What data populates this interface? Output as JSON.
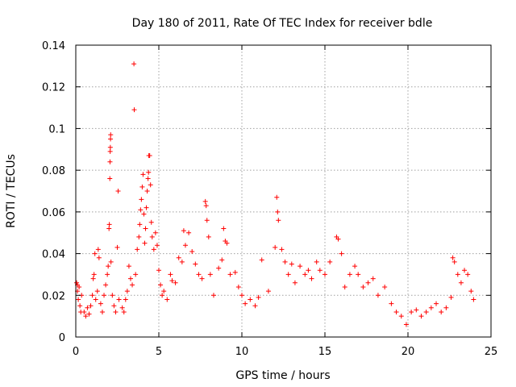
{
  "chart_data": {
    "type": "scatter",
    "title": "Day 180 of 2011, Rate Of TEC Index for receiver bdle",
    "xlabel": "GPS time / hours",
    "ylabel": "ROTI / TECUs",
    "xlim": [
      0,
      25
    ],
    "ylim": [
      0,
      0.14
    ],
    "xticks": [
      0,
      5,
      10,
      15,
      20,
      25
    ],
    "xtick_labels": [
      "0",
      "5",
      "10",
      "15",
      "20",
      "25"
    ],
    "yticks": [
      0,
      0.02,
      0.04,
      0.06,
      0.08,
      0.1,
      0.12,
      0.14
    ],
    "ytick_labels": [
      "0",
      "0.02",
      "0.04",
      "0.06",
      "0.08",
      "0.1",
      "0.12",
      "0.14"
    ],
    "grid": true,
    "marker": "+",
    "color": "#ff0000",
    "series": [
      {
        "points": [
          [
            0.05,
            0.026
          ],
          [
            0.1,
            0.022
          ],
          [
            0.15,
            0.018
          ],
          [
            0.2,
            0.024
          ],
          [
            0.25,
            0.015
          ],
          [
            0.3,
            0.012
          ],
          [
            0.35,
            0.02
          ],
          [
            0.1,
            0.025
          ],
          [
            0.5,
            0.012
          ],
          [
            0.6,
            0.01
          ],
          [
            0.7,
            0.014
          ],
          [
            0.8,
            0.011
          ],
          [
            0.9,
            0.015
          ],
          [
            1.0,
            0.02
          ],
          [
            1.05,
            0.028
          ],
          [
            1.1,
            0.03
          ],
          [
            1.15,
            0.04
          ],
          [
            1.2,
            0.018
          ],
          [
            1.3,
            0.022
          ],
          [
            1.35,
            0.042
          ],
          [
            1.4,
            0.038
          ],
          [
            1.5,
            0.016
          ],
          [
            1.6,
            0.012
          ],
          [
            1.7,
            0.02
          ],
          [
            1.8,
            0.025
          ],
          [
            1.9,
            0.03
          ],
          [
            1.95,
            0.034
          ],
          [
            2.0,
            0.052
          ],
          [
            2.02,
            0.054
          ],
          [
            2.05,
            0.076
          ],
          [
            2.06,
            0.084
          ],
          [
            2.07,
            0.089
          ],
          [
            2.08,
            0.091
          ],
          [
            2.09,
            0.095
          ],
          [
            2.1,
            0.097
          ],
          [
            2.12,
            0.036
          ],
          [
            2.2,
            0.02
          ],
          [
            2.3,
            0.015
          ],
          [
            2.4,
            0.012
          ],
          [
            2.5,
            0.043
          ],
          [
            2.55,
            0.07
          ],
          [
            2.6,
            0.018
          ],
          [
            2.8,
            0.014
          ],
          [
            2.9,
            0.012
          ],
          [
            3.0,
            0.018
          ],
          [
            3.1,
            0.022
          ],
          [
            3.2,
            0.034
          ],
          [
            3.3,
            0.028
          ],
          [
            3.4,
            0.025
          ],
          [
            3.5,
            0.131
          ],
          [
            3.52,
            0.109
          ],
          [
            3.6,
            0.03
          ],
          [
            3.7,
            0.042
          ],
          [
            3.8,
            0.048
          ],
          [
            3.85,
            0.054
          ],
          [
            3.9,
            0.061
          ],
          [
            3.95,
            0.066
          ],
          [
            4.0,
            0.072
          ],
          [
            4.05,
            0.078
          ],
          [
            4.1,
            0.059
          ],
          [
            4.15,
            0.045
          ],
          [
            4.2,
            0.052
          ],
          [
            4.25,
            0.062
          ],
          [
            4.3,
            0.07
          ],
          [
            4.35,
            0.076
          ],
          [
            4.38,
            0.079
          ],
          [
            4.4,
            0.087
          ],
          [
            4.45,
            0.087
          ],
          [
            4.5,
            0.073
          ],
          [
            4.55,
            0.055
          ],
          [
            4.6,
            0.048
          ],
          [
            4.7,
            0.042
          ],
          [
            4.8,
            0.05
          ],
          [
            4.9,
            0.044
          ],
          [
            5.0,
            0.032
          ],
          [
            5.1,
            0.025
          ],
          [
            5.2,
            0.02
          ],
          [
            5.3,
            0.022
          ],
          [
            5.5,
            0.018
          ],
          [
            5.7,
            0.03
          ],
          [
            5.8,
            0.027
          ],
          [
            6.0,
            0.026
          ],
          [
            6.2,
            0.038
          ],
          [
            6.4,
            0.036
          ],
          [
            6.5,
            0.051
          ],
          [
            6.6,
            0.044
          ],
          [
            6.8,
            0.05
          ],
          [
            7.0,
            0.041
          ],
          [
            7.2,
            0.035
          ],
          [
            7.4,
            0.03
          ],
          [
            7.6,
            0.028
          ],
          [
            7.8,
            0.065
          ],
          [
            7.85,
            0.063
          ],
          [
            7.9,
            0.056
          ],
          [
            8.0,
            0.048
          ],
          [
            8.1,
            0.03
          ],
          [
            8.3,
            0.02
          ],
          [
            8.6,
            0.033
          ],
          [
            8.8,
            0.037
          ],
          [
            8.9,
            0.052
          ],
          [
            9.0,
            0.046
          ],
          [
            9.1,
            0.045
          ],
          [
            9.3,
            0.03
          ],
          [
            9.6,
            0.031
          ],
          [
            9.8,
            0.024
          ],
          [
            10.0,
            0.02
          ],
          [
            10.2,
            0.016
          ],
          [
            10.5,
            0.018
          ],
          [
            10.8,
            0.015
          ],
          [
            11.0,
            0.019
          ],
          [
            11.2,
            0.037
          ],
          [
            11.6,
            0.022
          ],
          [
            12.0,
            0.043
          ],
          [
            12.1,
            0.067
          ],
          [
            12.15,
            0.06
          ],
          [
            12.2,
            0.056
          ],
          [
            12.4,
            0.042
          ],
          [
            12.6,
            0.036
          ],
          [
            12.8,
            0.03
          ],
          [
            13.0,
            0.035
          ],
          [
            13.2,
            0.026
          ],
          [
            13.5,
            0.034
          ],
          [
            13.8,
            0.03
          ],
          [
            14.0,
            0.032
          ],
          [
            14.2,
            0.028
          ],
          [
            14.5,
            0.036
          ],
          [
            14.7,
            0.032
          ],
          [
            15.0,
            0.03
          ],
          [
            15.3,
            0.036
          ],
          [
            15.7,
            0.048
          ],
          [
            15.8,
            0.047
          ],
          [
            16.0,
            0.04
          ],
          [
            16.2,
            0.024
          ],
          [
            16.5,
            0.03
          ],
          [
            16.8,
            0.034
          ],
          [
            17.0,
            0.03
          ],
          [
            17.3,
            0.024
          ],
          [
            17.6,
            0.026
          ],
          [
            17.9,
            0.028
          ],
          [
            18.2,
            0.02
          ],
          [
            18.6,
            0.024
          ],
          [
            19.0,
            0.016
          ],
          [
            19.3,
            0.012
          ],
          [
            19.6,
            0.01
          ],
          [
            19.9,
            0.006
          ],
          [
            20.2,
            0.012
          ],
          [
            20.5,
            0.013
          ],
          [
            20.8,
            0.01
          ],
          [
            21.1,
            0.012
          ],
          [
            21.4,
            0.014
          ],
          [
            21.7,
            0.016
          ],
          [
            22.0,
            0.012
          ],
          [
            22.3,
            0.014
          ],
          [
            22.6,
            0.019
          ],
          [
            22.7,
            0.038
          ],
          [
            22.8,
            0.036
          ],
          [
            23.0,
            0.03
          ],
          [
            23.2,
            0.026
          ],
          [
            23.4,
            0.032
          ],
          [
            23.6,
            0.03
          ],
          [
            23.8,
            0.022
          ],
          [
            23.95,
            0.018
          ]
        ]
      }
    ]
  }
}
